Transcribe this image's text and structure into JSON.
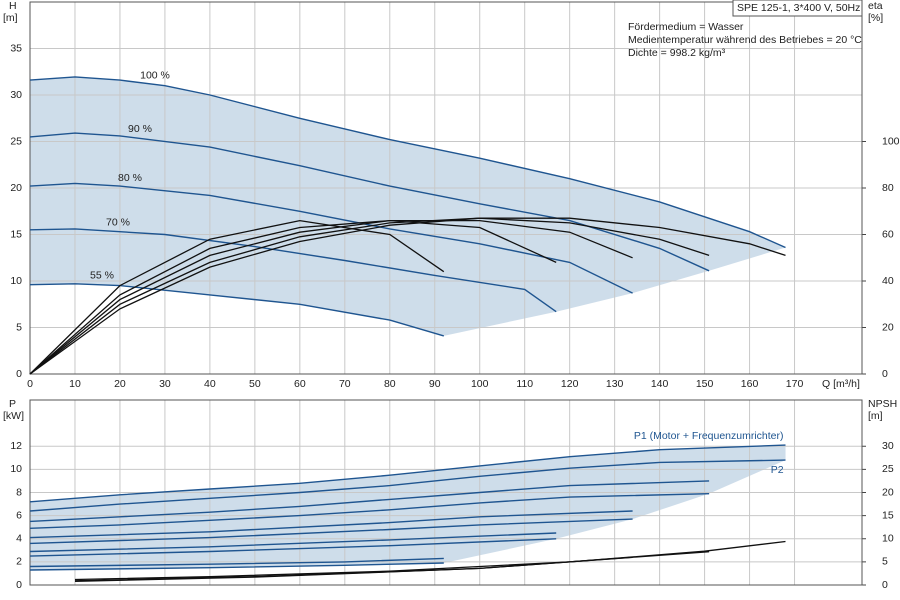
{
  "chart_data": [
    {
      "type": "line",
      "title": "SPE 125-1, 3*400 V, 50Hz",
      "annotations": [
        "Fördermedium = Wasser",
        "Medientemperatur während des Betriebes = 20 °C",
        "Dichte = 998.2 kg/m³"
      ],
      "xlabel": "Q [m³/h]",
      "ylabel": [
        "H",
        "[m]"
      ],
      "y2label": [
        "eta",
        "[%]"
      ],
      "xlim": [
        0,
        185
      ],
      "xticks": [
        0,
        10,
        20,
        30,
        40,
        50,
        60,
        70,
        80,
        90,
        100,
        110,
        120,
        130,
        140,
        150,
        160,
        170
      ],
      "ylim": [
        0,
        40
      ],
      "yticks": [
        0,
        5,
        10,
        15,
        20,
        25,
        30,
        35
      ],
      "y2lim": [
        0,
        160
      ],
      "y2ticks": [
        0,
        20,
        40,
        60,
        80,
        100
      ],
      "grid": true,
      "shade_color": "#c6d7e6",
      "series": [
        {
          "name": "100 %",
          "color": "#1f5590",
          "x": [
            0,
            10,
            20,
            30,
            40,
            60,
            80,
            100,
            120,
            140,
            160,
            168
          ],
          "values": [
            31.6,
            31.95,
            31.6,
            31,
            30,
            27.5,
            25.2,
            23.2,
            21,
            18.5,
            15.3,
            13.6
          ]
        },
        {
          "name": "90 %",
          "color": "#1f5590",
          "x": [
            0,
            10,
            20,
            40,
            60,
            80,
            100,
            120,
            140,
            151
          ],
          "values": [
            25.5,
            25.9,
            25.6,
            24.4,
            22.4,
            20.2,
            18.3,
            16.5,
            13.5,
            11.1
          ]
        },
        {
          "name": "80 %",
          "color": "#1f5590",
          "x": [
            0,
            10,
            20,
            40,
            60,
            80,
            100,
            120,
            134
          ],
          "values": [
            20.2,
            20.5,
            20.2,
            19.2,
            17.5,
            15.6,
            14,
            12,
            8.7
          ]
        },
        {
          "name": "70 %",
          "color": "#1f5590",
          "x": [
            0,
            10,
            30,
            50,
            70,
            90,
            110,
            117
          ],
          "values": [
            15.5,
            15.6,
            15,
            13.7,
            12.2,
            10.6,
            9.1,
            6.7
          ]
        },
        {
          "name": "55 %",
          "color": "#1f5590",
          "x": [
            0,
            10,
            20,
            40,
            60,
            80,
            92
          ],
          "values": [
            9.6,
            9.7,
            9.5,
            8.5,
            7.5,
            5.8,
            4.1
          ]
        },
        {
          "color": "#111111",
          "axis": "y2",
          "x": [
            0,
            20,
            40,
            60,
            80,
            100,
            120,
            140,
            160,
            168
          ],
          "values": [
            0,
            28,
            46,
            57,
            64,
            67,
            67,
            63,
            56,
            51
          ]
        },
        {
          "color": "#111111",
          "axis": "y2",
          "x": [
            0,
            20,
            40,
            60,
            80,
            100,
            120,
            140,
            151
          ],
          "values": [
            0,
            30,
            48,
            59,
            65,
            67,
            65,
            58,
            51
          ]
        },
        {
          "color": "#111111",
          "axis": "y2",
          "x": [
            0,
            20,
            40,
            60,
            80,
            100,
            120,
            134
          ],
          "values": [
            0,
            32,
            51,
            61,
            66,
            66,
            61,
            50
          ]
        },
        {
          "color": "#111111",
          "axis": "y2",
          "x": [
            0,
            20,
            40,
            60,
            80,
            100,
            117
          ],
          "values": [
            0,
            34,
            54,
            63,
            66,
            63,
            48
          ]
        },
        {
          "color": "#111111",
          "axis": "y2",
          "x": [
            0,
            20,
            40,
            60,
            80,
            92
          ],
          "values": [
            0,
            38,
            58,
            66,
            60,
            44
          ]
        }
      ]
    },
    {
      "type": "line",
      "ylabel": [
        "P",
        "[kW]"
      ],
      "y2label": [
        "NPSH",
        "[m]"
      ],
      "xlim": [
        0,
        185
      ],
      "xticks": [
        0,
        10,
        20,
        30,
        40,
        50,
        60,
        70,
        80,
        90,
        100,
        110,
        120,
        130,
        140,
        150,
        160,
        170
      ],
      "ylim": [
        0,
        16
      ],
      "yticks": [
        0,
        2,
        4,
        6,
        8,
        10,
        12
      ],
      "y2lim": [
        0,
        40
      ],
      "y2ticks": [
        0,
        5,
        10,
        15,
        20,
        25,
        30
      ],
      "grid": true,
      "shade_color": "#c6d7e6",
      "series": [
        {
          "name": "P1 (Motor + Frequenzumrichter)",
          "color": "#1f5590",
          "x": [
            0,
            20,
            40,
            60,
            80,
            100,
            120,
            140,
            168
          ],
          "values": [
            7.2,
            7.8,
            8.3,
            8.8,
            9.5,
            10.3,
            11.1,
            11.7,
            12.1
          ]
        },
        {
          "name": "P2",
          "color": "#1f5590",
          "x": [
            0,
            20,
            40,
            60,
            80,
            100,
            120,
            140,
            168
          ],
          "values": [
            6.4,
            7,
            7.5,
            8,
            8.6,
            9.4,
            10.1,
            10.6,
            10.8
          ]
        },
        {
          "color": "#1f5590",
          "x": [
            0,
            20,
            40,
            60,
            80,
            100,
            120,
            151
          ],
          "values": [
            5.5,
            5.9,
            6.3,
            6.8,
            7.4,
            8,
            8.6,
            9
          ]
        },
        {
          "color": "#1f5590",
          "x": [
            0,
            20,
            40,
            60,
            80,
            100,
            120,
            151
          ],
          "values": [
            4.9,
            5.2,
            5.6,
            6,
            6.5,
            7.1,
            7.6,
            7.9
          ]
        },
        {
          "color": "#1f5590",
          "x": [
            0,
            40,
            80,
            100,
            134
          ],
          "values": [
            4.1,
            4.6,
            5.4,
            5.9,
            6.4
          ]
        },
        {
          "color": "#1f5590",
          "x": [
            0,
            40,
            80,
            100,
            134
          ],
          "values": [
            3.6,
            4.1,
            4.8,
            5.2,
            5.7
          ]
        },
        {
          "color": "#1f5590",
          "x": [
            0,
            40,
            80,
            117
          ],
          "values": [
            2.9,
            3.3,
            3.9,
            4.5
          ]
        },
        {
          "color": "#1f5590",
          "x": [
            0,
            40,
            80,
            117
          ],
          "values": [
            2.5,
            2.9,
            3.4,
            4
          ]
        },
        {
          "color": "#1f5590",
          "x": [
            0,
            40,
            70,
            92
          ],
          "values": [
            1.6,
            1.8,
            2,
            2.3
          ]
        },
        {
          "color": "#1f5590",
          "x": [
            0,
            40,
            70,
            92
          ],
          "values": [
            1.3,
            1.5,
            1.7,
            1.9
          ]
        },
        {
          "color": "#111111",
          "axis": "y2",
          "x": [
            10,
            40,
            80,
            120,
            150,
            168
          ],
          "values": [
            1.2,
            1.8,
            3,
            5,
            7.3,
            9.4
          ]
        },
        {
          "color": "#111111",
          "axis": "y2",
          "x": [
            10,
            50,
            100,
            151
          ],
          "values": [
            0.9,
            1.8,
            3.6,
            7.2
          ]
        },
        {
          "color": "#111111",
          "axis": "y2",
          "x": [
            10,
            50,
            100,
            134
          ],
          "values": [
            0.8,
            1.7,
            3.6,
            6
          ]
        }
      ]
    }
  ]
}
